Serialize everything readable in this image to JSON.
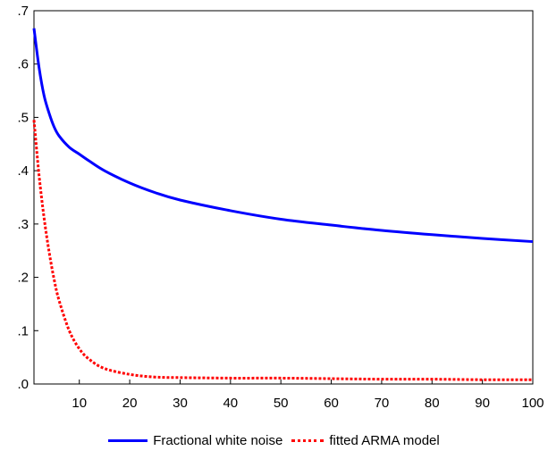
{
  "chart_data": {
    "type": "line",
    "title": "",
    "xlabel": "",
    "ylabel": "",
    "xlim": [
      1,
      100
    ],
    "ylim": [
      0,
      0.7
    ],
    "x_ticks": [
      10,
      20,
      30,
      40,
      50,
      60,
      70,
      80,
      90,
      100
    ],
    "x_tick_labels": [
      "10",
      "20",
      "30",
      "40",
      "50",
      "60",
      "70",
      "80",
      "90",
      "100"
    ],
    "y_ticks": [
      0,
      0.1,
      0.2,
      0.3,
      0.4,
      0.5,
      0.6,
      0.7
    ],
    "y_tick_labels": [
      ".0",
      ".1",
      ".2",
      ".3",
      ".4",
      ".5",
      ".6",
      ".7"
    ],
    "grid": false,
    "legend_position": "bottom",
    "series": [
      {
        "name": "Fractional white noise",
        "color": "#0000ff",
        "style": "solid",
        "x": [
          1,
          2,
          3,
          4,
          5,
          6,
          8,
          10,
          12,
          15,
          20,
          25,
          30,
          40,
          50,
          60,
          70,
          80,
          90,
          100
        ],
        "y": [
          0.667,
          0.594,
          0.541,
          0.508,
          0.482,
          0.465,
          0.444,
          0.431,
          0.418,
          0.4,
          0.377,
          0.359,
          0.345,
          0.325,
          0.309,
          0.298,
          0.288,
          0.28,
          0.273,
          0.267
        ]
      },
      {
        "name": "fitted ARMA model",
        "color": "#ff0000",
        "style": "dotted",
        "x": [
          1,
          2,
          3,
          4,
          5,
          6,
          8,
          10,
          12,
          15,
          20,
          25,
          30,
          40,
          50,
          60,
          70,
          80,
          90,
          100
        ],
        "y": [
          0.495,
          0.392,
          0.312,
          0.248,
          0.196,
          0.156,
          0.1,
          0.066,
          0.046,
          0.029,
          0.018,
          0.013,
          0.012,
          0.011,
          0.011,
          0.01,
          0.009,
          0.009,
          0.008,
          0.008
        ]
      }
    ]
  }
}
